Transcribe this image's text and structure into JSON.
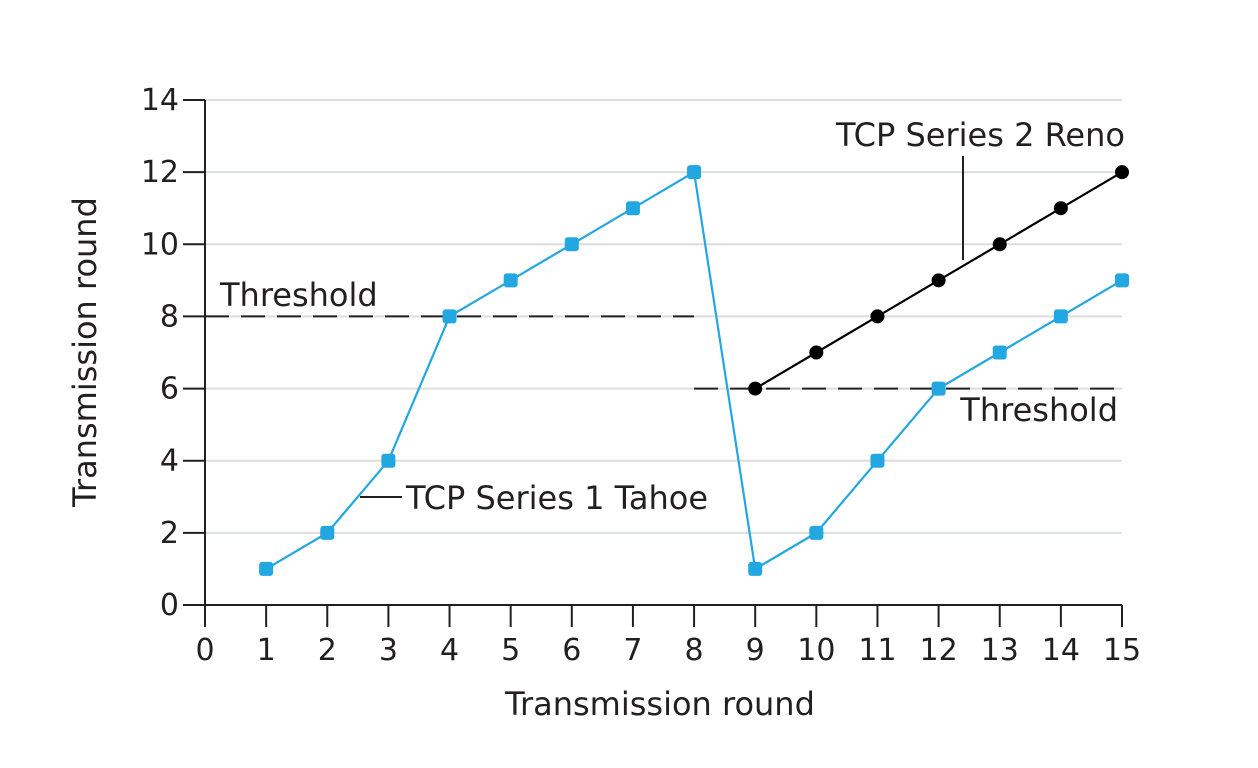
{
  "chart_data": {
    "type": "line",
    "title": "",
    "xlabel": "Transmission round",
    "ylabel": "Transmission round",
    "xlim": [
      0,
      15
    ],
    "ylim": [
      0,
      14
    ],
    "xticks": [
      0,
      1,
      2,
      3,
      4,
      5,
      6,
      7,
      8,
      9,
      10,
      11,
      12,
      13,
      14,
      15
    ],
    "yticks": [
      0,
      2,
      4,
      6,
      8,
      10,
      12,
      14
    ],
    "grid": "horizontal",
    "series": [
      {
        "name": "TCP Series 1 Tahoe",
        "color": "#22a7e0",
        "x": [
          1,
          2,
          3,
          4,
          5,
          6,
          7,
          8,
          9,
          10,
          11,
          12,
          13,
          14,
          15
        ],
        "y": [
          1,
          2,
          4,
          8,
          9,
          10,
          11,
          12,
          1,
          2,
          4,
          6,
          7,
          8,
          9
        ]
      },
      {
        "name": "TCP Series 2 Reno",
        "color": "#000000",
        "x": [
          9,
          10,
          11,
          12,
          13,
          14,
          15
        ],
        "y": [
          6,
          7,
          8,
          9,
          10,
          11,
          12
        ]
      }
    ],
    "thresholds": [
      {
        "label": "Threshold",
        "y": 8,
        "x_from": 0,
        "x_to": 8
      },
      {
        "label": "Threshold",
        "y": 6,
        "x_from": 8,
        "x_to": 15
      }
    ]
  }
}
